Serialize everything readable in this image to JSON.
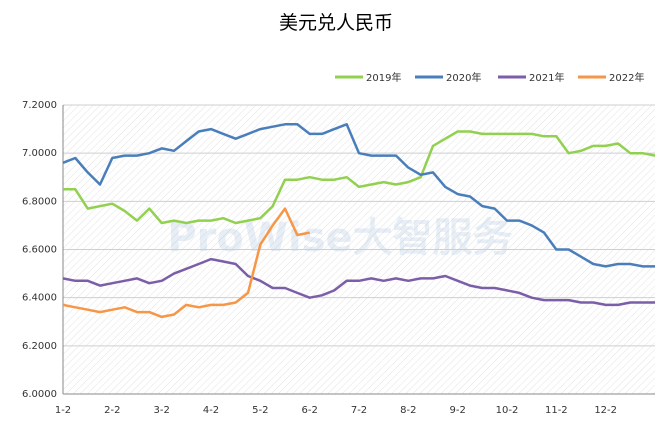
{
  "chart_data": {
    "type": "line",
    "title": "美元兑人民币",
    "watermark": "ProWise大智服务",
    "categories": [
      "1-2",
      null,
      null,
      null,
      "2-2",
      null,
      null,
      null,
      "3-2",
      null,
      null,
      null,
      "4-2",
      null,
      null,
      null,
      "5-2",
      null,
      null,
      null,
      "6-2",
      null,
      null,
      null,
      "7-2",
      null,
      null,
      null,
      "8-2",
      null,
      null,
      null,
      "9-2",
      null,
      null,
      null,
      "10-2",
      null,
      null,
      null,
      "11-2",
      null,
      null,
      null,
      "12-2",
      null,
      null,
      null,
      null
    ],
    "series": [
      {
        "name": "2019年",
        "color": "#92d050",
        "values": [
          6.85,
          6.85,
          6.77,
          6.78,
          6.79,
          6.76,
          6.72,
          6.77,
          6.71,
          6.72,
          6.71,
          6.72,
          6.72,
          6.73,
          6.71,
          6.72,
          6.73,
          6.78,
          6.89,
          6.89,
          6.9,
          6.89,
          6.89,
          6.9,
          6.86,
          6.87,
          6.88,
          6.87,
          6.88,
          6.9,
          7.03,
          7.06,
          7.09,
          7.09,
          7.08,
          7.08,
          7.08,
          7.08,
          7.08,
          7.07,
          7.07,
          7.0,
          7.01,
          7.03,
          7.03,
          7.04,
          7.0,
          7.0,
          6.99
        ]
      },
      {
        "name": "2020年",
        "color": "#4a7ebb",
        "values": [
          6.96,
          6.98,
          6.92,
          6.87,
          6.98,
          6.99,
          6.99,
          7.0,
          7.02,
          7.01,
          7.05,
          7.09,
          7.1,
          7.08,
          7.06,
          7.08,
          7.1,
          7.11,
          7.12,
          7.12,
          7.08,
          7.08,
          7.1,
          7.12,
          7.0,
          6.99,
          6.99,
          6.99,
          6.94,
          6.91,
          6.92,
          6.86,
          6.83,
          6.82,
          6.78,
          6.77,
          6.72,
          6.72,
          6.7,
          6.67,
          6.6,
          6.6,
          6.57,
          6.54,
          6.53,
          6.54,
          6.54,
          6.53,
          6.53
        ]
      },
      {
        "name": "2021年",
        "color": "#7b5ea7",
        "values": [
          6.48,
          6.47,
          6.47,
          6.45,
          6.46,
          6.47,
          6.48,
          6.46,
          6.47,
          6.5,
          6.52,
          6.54,
          6.56,
          6.55,
          6.54,
          6.49,
          6.47,
          6.44,
          6.44,
          6.42,
          6.4,
          6.41,
          6.43,
          6.47,
          6.47,
          6.48,
          6.47,
          6.48,
          6.47,
          6.48,
          6.48,
          6.49,
          6.47,
          6.45,
          6.44,
          6.44,
          6.43,
          6.42,
          6.4,
          6.39,
          6.39,
          6.39,
          6.38,
          6.38,
          6.37,
          6.37,
          6.38,
          6.38,
          6.38
        ]
      },
      {
        "name": "2022年",
        "color": "#f79646",
        "values": [
          6.37,
          6.36,
          6.35,
          6.34,
          6.35,
          6.36,
          6.34,
          6.34,
          6.32,
          6.33,
          6.37,
          6.36,
          6.37,
          6.37,
          6.38,
          6.42,
          6.62,
          6.7,
          6.77,
          6.66,
          6.67,
          null,
          null,
          null,
          null,
          null,
          null,
          null,
          null,
          null,
          null,
          null,
          null,
          null,
          null,
          null,
          null,
          null,
          null,
          null,
          null,
          null,
          null,
          null,
          null,
          null,
          null,
          null,
          null
        ]
      }
    ],
    "ylim": [
      6.0,
      7.2
    ],
    "yticks": [
      {
        "value": 6.0,
        "label": "6.0000"
      },
      {
        "value": 6.2,
        "label": "6.2000"
      },
      {
        "value": 6.4,
        "label": "6.4000"
      },
      {
        "value": 6.6,
        "label": "6.6000"
      },
      {
        "value": 6.8,
        "label": "6.8000"
      },
      {
        "value": 7.0,
        "label": "7.0000"
      },
      {
        "value": 7.2,
        "label": "7.2000"
      }
    ],
    "grid": true,
    "legend": "top-right"
  }
}
